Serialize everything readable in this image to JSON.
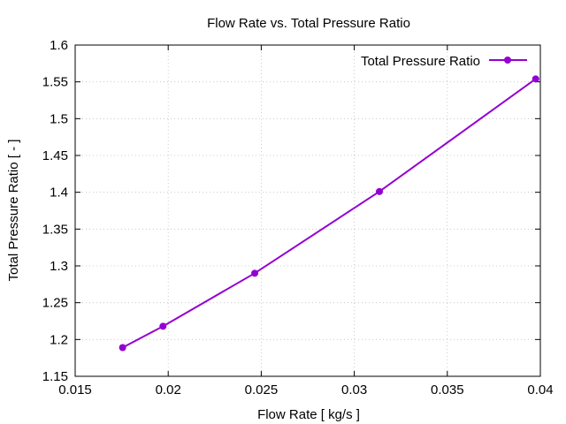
{
  "chart_data": {
    "type": "line",
    "title": "Flow Rate vs. Total Pressure Ratio",
    "xlabel": "Flow Rate [ kg/s ]",
    "ylabel": "Total Pressure Ratio [ - ]",
    "xlim": [
      0.015,
      0.04
    ],
    "ylim": [
      1.15,
      1.6
    ],
    "xticks": [
      "0.015",
      "0.02",
      "0.025",
      "0.03",
      "0.035",
      "0.04"
    ],
    "yticks": [
      "1.15",
      "1.2",
      "1.25",
      "1.3",
      "1.35",
      "1.4",
      "1.45",
      "1.5",
      "1.55",
      "1.6"
    ],
    "grid": true,
    "legend_position": "top-right",
    "series": [
      {
        "name": "Total Pressure Ratio",
        "color": "#9400d3",
        "x": [
          0.01755,
          0.01972,
          0.02465,
          0.03135,
          0.03975
        ],
        "y": [
          1.189,
          1.218,
          1.29,
          1.401,
          1.554
        ]
      }
    ]
  }
}
